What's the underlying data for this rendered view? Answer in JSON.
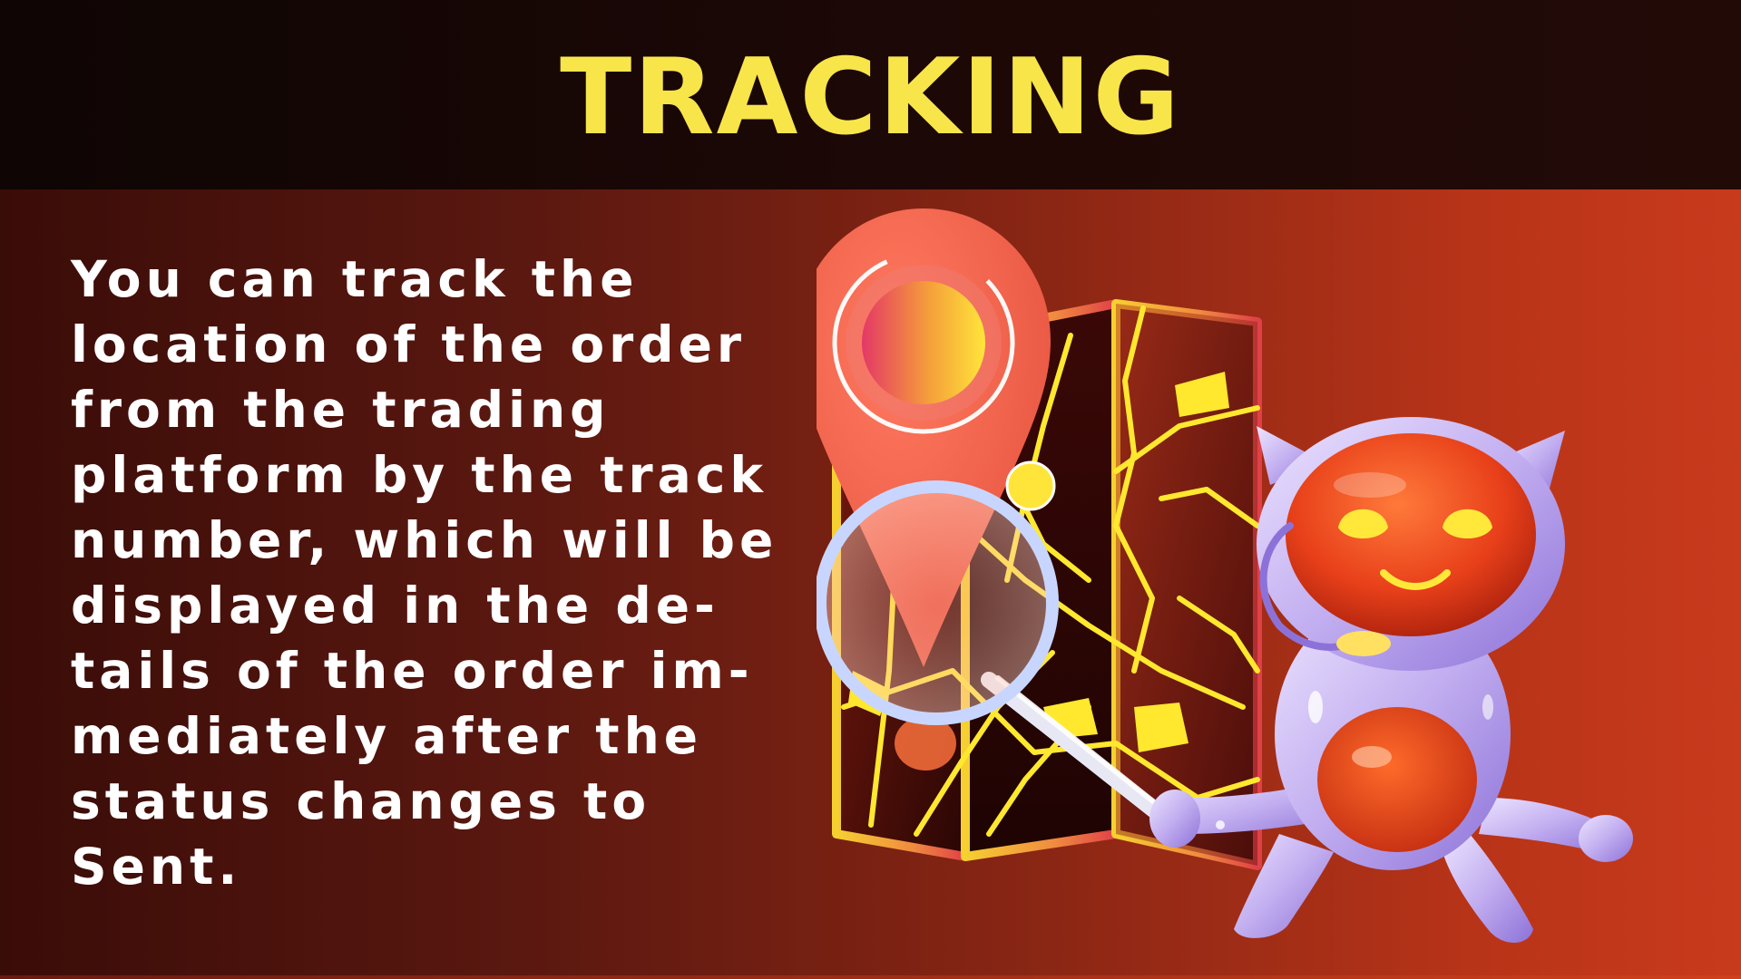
{
  "header": {
    "title": "TRACKING"
  },
  "content": {
    "lines": [
      "You can track the",
      "location of the order",
      "from the trading",
      "platform by the track",
      "number, which will be",
      "displayed in the de-",
      "tails of the order im-",
      "mediately after the",
      "status changes to",
      "Sent."
    ]
  },
  "colors": {
    "title": "#f8e54a",
    "text": "#ffffff",
    "map_frame": "#f0c62e",
    "pin": "#f0634c",
    "robot_body": "#c9b6f0"
  }
}
